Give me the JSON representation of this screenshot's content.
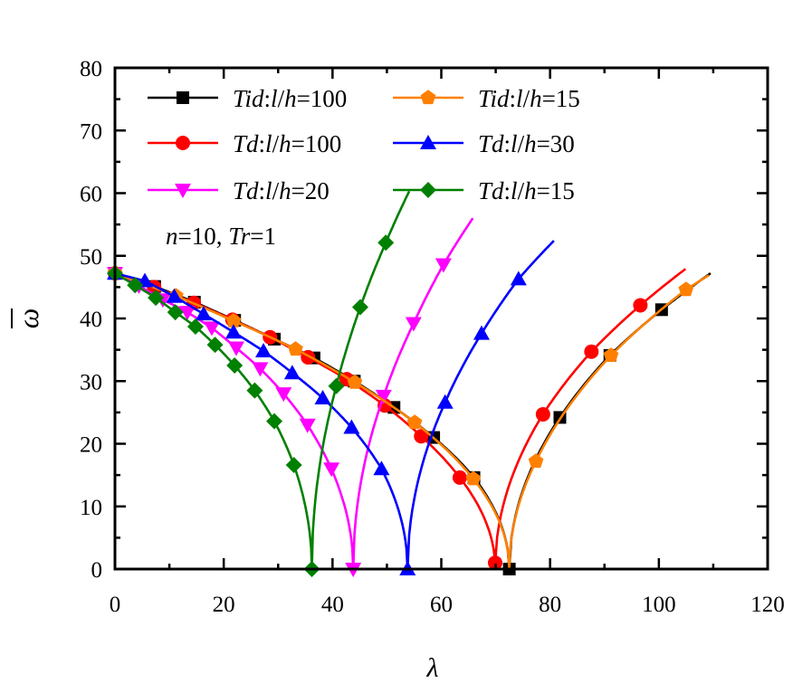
{
  "chart_data": {
    "type": "line",
    "xlabel": "λ",
    "ylabel": "ω",
    "ylabel_overbar": true,
    "xlim": [
      0,
      120
    ],
    "ylim": [
      0,
      80
    ],
    "xticks": [
      0,
      20,
      40,
      60,
      80,
      100,
      120
    ],
    "yticks": [
      0,
      10,
      20,
      30,
      40,
      50,
      60,
      70,
      80
    ],
    "grid": false,
    "legend_placement": "top",
    "annotation": "n=10, Tr=1",
    "series": [
      {
        "name": "Tid:l/h=100",
        "color": "#000000",
        "marker": "square",
        "points": [
          [
            0,
            47.2
          ],
          [
            7.3,
            45.1
          ],
          [
            14.6,
            42.6
          ],
          [
            22,
            39.7
          ],
          [
            29.3,
            36.7
          ],
          [
            36.6,
            33.7
          ],
          [
            44,
            30
          ],
          [
            51.3,
            25.8
          ],
          [
            58.6,
            21
          ],
          [
            66,
            14.6
          ],
          [
            72.5,
            0
          ],
          [
            81.8,
            24.2
          ],
          [
            91,
            34.1
          ],
          [
            100.5,
            41.4
          ]
        ],
        "line_only": [
          [
            109.5,
            47.2
          ]
        ]
      },
      {
        "name": "Td:l/h=100",
        "color": "#ff0000",
        "marker": "circle",
        "points": [
          [
            0,
            47.2
          ],
          [
            7.2,
            45
          ],
          [
            14.5,
            42.5
          ],
          [
            21.6,
            39.8
          ],
          [
            28.5,
            37
          ],
          [
            35.5,
            33.8
          ],
          [
            42.6,
            30.3
          ],
          [
            49.6,
            26.1
          ],
          [
            56.3,
            21.2
          ],
          [
            63.4,
            14.6
          ],
          [
            69.9,
            1.0
          ],
          [
            78.7,
            24.7
          ],
          [
            87.6,
            34.7
          ],
          [
            96.6,
            42.1
          ]
        ],
        "line_only": [
          [
            104.9,
            47.9
          ]
        ]
      },
      {
        "name": "Td:l/h=20",
        "color": "#ff00ff",
        "marker": "triangle-down",
        "points": [
          [
            0,
            47.2
          ],
          [
            4.4,
            45.2
          ],
          [
            8.8,
            43
          ],
          [
            13.3,
            41
          ],
          [
            17.8,
            38.5
          ],
          [
            22.3,
            35.3
          ],
          [
            26.7,
            32
          ],
          [
            31,
            28
          ],
          [
            35.4,
            23
          ],
          [
            39.8,
            16
          ],
          [
            43.8,
            0
          ],
          [
            49.4,
            27.6
          ],
          [
            54.9,
            39.2
          ],
          [
            60.4,
            48.6
          ]
        ],
        "line_only": [
          [
            65.8,
            56
          ]
        ]
      },
      {
        "name": "Tid:l/h=15",
        "color": "#ff8000",
        "marker": "pentagon",
        "points": [
          [
            0,
            47.2
          ],
          [
            11.2,
            43.6
          ],
          [
            21.8,
            39.6
          ],
          [
            33.2,
            35.1
          ],
          [
            44.1,
            29.8
          ],
          [
            55.1,
            23.4
          ],
          [
            65.9,
            14.4
          ],
          [
            77.4,
            17.2
          ],
          [
            91.2,
            34.1
          ],
          [
            105,
            44.6
          ]
        ],
        "line_only": [
          [
            72.5,
            0
          ],
          [
            109.2,
            46.9
          ]
        ]
      },
      {
        "name": "Td:l/h=30",
        "color": "#0000ff",
        "marker": "triangle-up",
        "points": [
          [
            0,
            47.2
          ],
          [
            5.5,
            46
          ],
          [
            10.9,
            43.5
          ],
          [
            16.3,
            40.7
          ],
          [
            21.8,
            37.8
          ],
          [
            27.3,
            34.8
          ],
          [
            32.6,
            31.3
          ],
          [
            38.2,
            27.3
          ],
          [
            43.5,
            22.6
          ],
          [
            49,
            16
          ],
          [
            53.8,
            0
          ],
          [
            60.7,
            26.6
          ],
          [
            67.4,
            37.6
          ],
          [
            74.2,
            46.3
          ]
        ],
        "line_only": [
          [
            80.7,
            52.4
          ]
        ]
      },
      {
        "name": "Td:l/h=15",
        "color": "#008000",
        "marker": "diamond",
        "points": [
          [
            0,
            47.2
          ],
          [
            3.7,
            45.3
          ],
          [
            7.5,
            43.3
          ],
          [
            11.1,
            41
          ],
          [
            14.8,
            38.7
          ],
          [
            18.4,
            35.8
          ],
          [
            22,
            32.5
          ],
          [
            25.7,
            28.5
          ],
          [
            29.3,
            23.6
          ],
          [
            32.9,
            16.6
          ],
          [
            36.2,
            0
          ],
          [
            40.7,
            29.2
          ],
          [
            45.1,
            41.8
          ],
          [
            49.8,
            52.1
          ]
        ],
        "line_only": [
          [
            54.1,
            60.3
          ]
        ]
      }
    ]
  }
}
